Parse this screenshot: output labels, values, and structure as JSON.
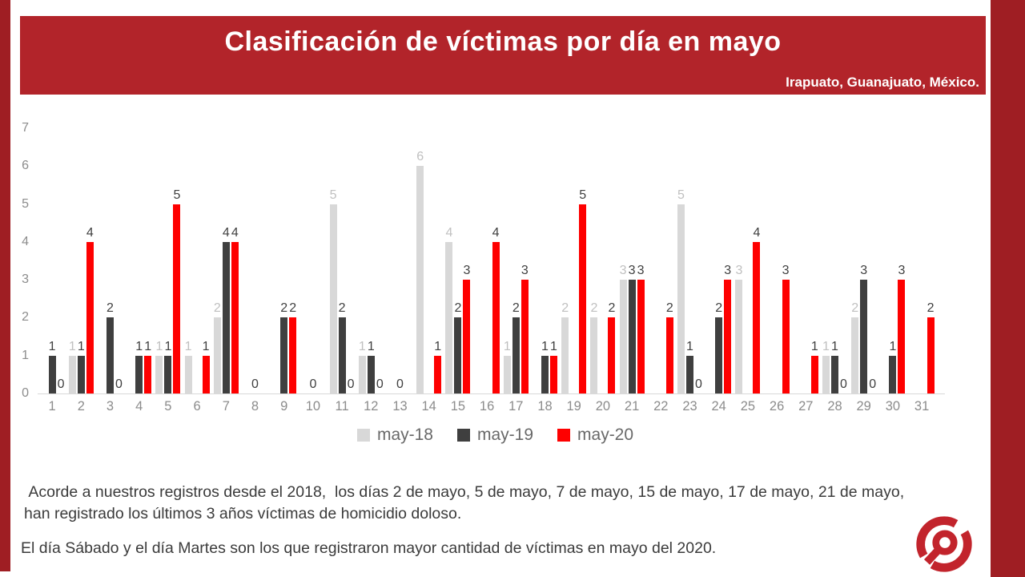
{
  "page": {
    "background": "#ffffff",
    "frame_color": "#9f1e23",
    "band_color": "#b2242a"
  },
  "header": {
    "title": "Clasificación de víctimas por día en mayo",
    "location": "Irapuato, Guanajuato, México."
  },
  "chart_data": {
    "type": "bar",
    "title": "",
    "xlabel": "",
    "ylabel": "",
    "categories": [
      1,
      2,
      3,
      4,
      5,
      6,
      7,
      8,
      9,
      10,
      11,
      12,
      13,
      14,
      15,
      16,
      17,
      18,
      19,
      20,
      21,
      22,
      23,
      24,
      25,
      26,
      27,
      28,
      29,
      30,
      31
    ],
    "series": [
      {
        "name": "may-18",
        "color": "#d8d8d8",
        "label_color": "#c0c0c0",
        "values": [
          0,
          1,
          0,
          0,
          1,
          1,
          2,
          0,
          0,
          0,
          5,
          1,
          0,
          6,
          4,
          0,
          1,
          0,
          2,
          2,
          3,
          0,
          5,
          0,
          3,
          0,
          0,
          1,
          2,
          0,
          0
        ]
      },
      {
        "name": "may-19",
        "color": "#3f3f3f",
        "label_color": "#3f3f3f",
        "values": [
          1,
          1,
          2,
          1,
          1,
          0,
          4,
          0,
          2,
          0,
          2,
          1,
          0,
          0,
          2,
          0,
          2,
          1,
          0,
          0,
          3,
          0,
          1,
          2,
          0,
          0,
          0,
          1,
          3,
          1,
          0
        ]
      },
      {
        "name": "may-20",
        "color": "#fe0000",
        "label_color": "#3f3f3f",
        "values": [
          0,
          4,
          0,
          1,
          5,
          1,
          4,
          0,
          2,
          0,
          0,
          0,
          0,
          1,
          3,
          4,
          3,
          1,
          5,
          2,
          3,
          2,
          0,
          3,
          4,
          3,
          1,
          0,
          0,
          3,
          2
        ]
      }
    ],
    "ylim": [
      0,
      7
    ],
    "yticks": [
      0,
      1,
      2,
      3,
      4,
      5,
      6,
      7
    ],
    "grid": false,
    "legend_position": "bottom",
    "data_labels": "non-zero values labeled for all series; zero values labeled only for may-20",
    "axis_color": "#8c8c8c"
  },
  "footer": {
    "note1": " Acorde a nuestros registros desde el 2018,  los días 2 de mayo, 5 de mayo, 7 de mayo, 15 de mayo, 17 de mayo, 21 de mayo, han registrado los últimos 3 años víctimas de homicidio doloso.",
    "note2": "El día Sábado y el día Martes son los que registraron mayor cantidad de víctimas en mayo del 2020."
  },
  "logo": {
    "name": "poplab-logo",
    "color": "#c2242c"
  }
}
